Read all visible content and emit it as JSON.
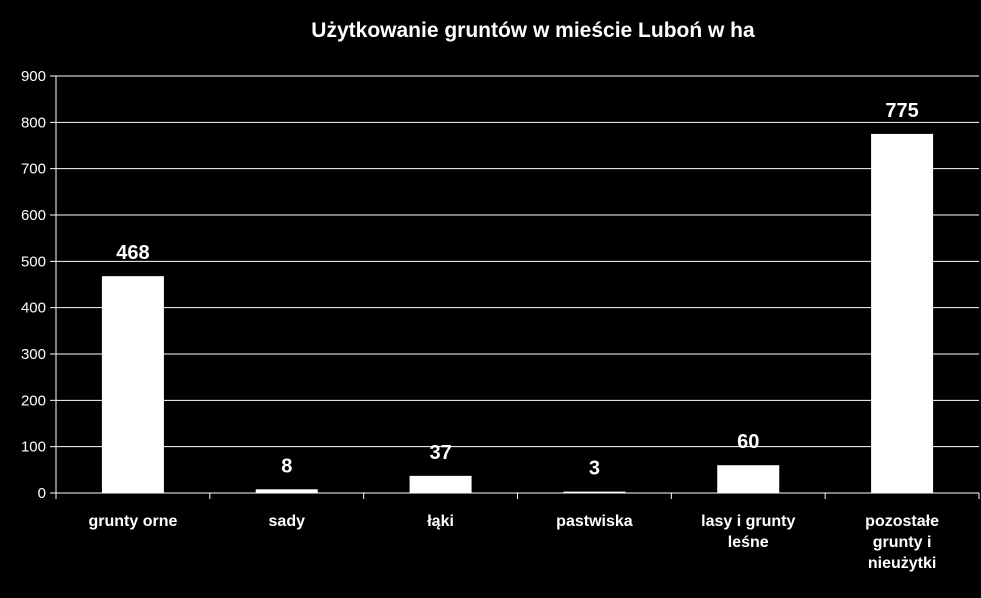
{
  "chart_data": {
    "type": "bar",
    "title": "Użytkowanie gruntów w mieście Luboń  w ha",
    "categories": [
      [
        "grunty orne"
      ],
      [
        "sady"
      ],
      [
        "łąki"
      ],
      [
        "pastwiska"
      ],
      [
        "lasy i grunty",
        "leśne"
      ],
      [
        "pozostałe",
        "grunty i",
        "nieużytki"
      ]
    ],
    "values": [
      468,
      8,
      37,
      3,
      60,
      775
    ],
    "data_labels": [
      "468",
      "8",
      "37",
      "3",
      "60",
      "775"
    ],
    "ylim": [
      0,
      900
    ],
    "yticks": [
      "0",
      "100",
      "200",
      "300",
      "400",
      "500",
      "600",
      "700",
      "800",
      "900"
    ],
    "grid": true,
    "legend": "none",
    "colors": {
      "background": "#000000",
      "bar": "#ffffff",
      "text": "#ffffff",
      "grid": "#ffffff"
    }
  }
}
